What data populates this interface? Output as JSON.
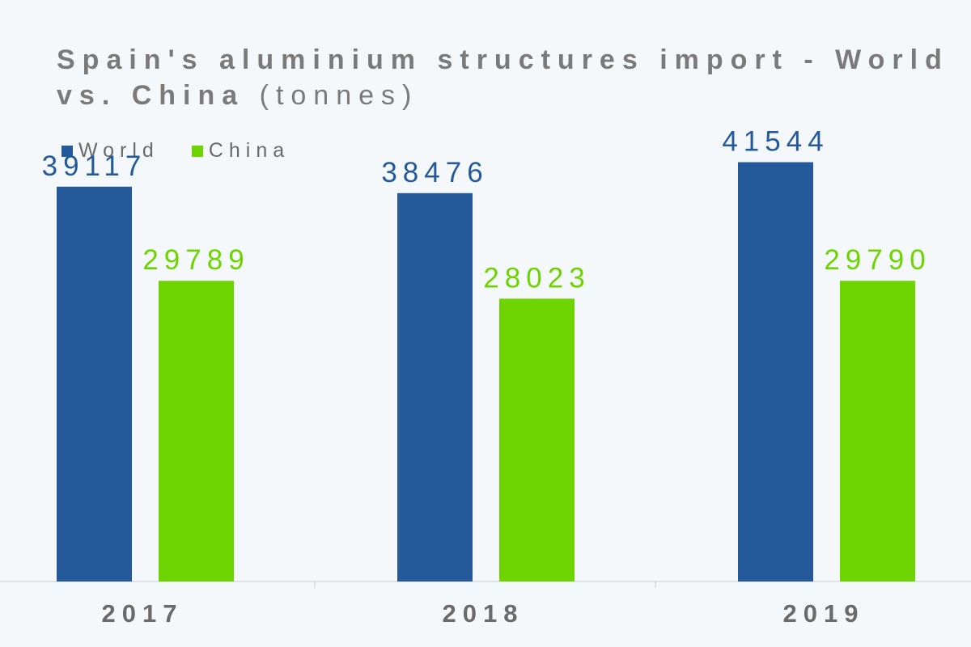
{
  "chart_data": {
    "type": "bar",
    "title": "Spain's aluminium structures import - World vs. China",
    "title_unit": "(tonnes)",
    "categories": [
      "2017",
      "2018",
      "2019"
    ],
    "series": [
      {
        "name": "World",
        "color": "#245a9a",
        "values": [
          39117,
          38476,
          41544
        ]
      },
      {
        "name": "China",
        "color": "#6dd400",
        "values": [
          29789,
          28023,
          29790
        ]
      }
    ],
    "ylim": [
      0,
      50000
    ],
    "grid": false,
    "data_labels": true,
    "legend_position": "top-left",
    "axis_label_color": "#6a6a6a"
  }
}
